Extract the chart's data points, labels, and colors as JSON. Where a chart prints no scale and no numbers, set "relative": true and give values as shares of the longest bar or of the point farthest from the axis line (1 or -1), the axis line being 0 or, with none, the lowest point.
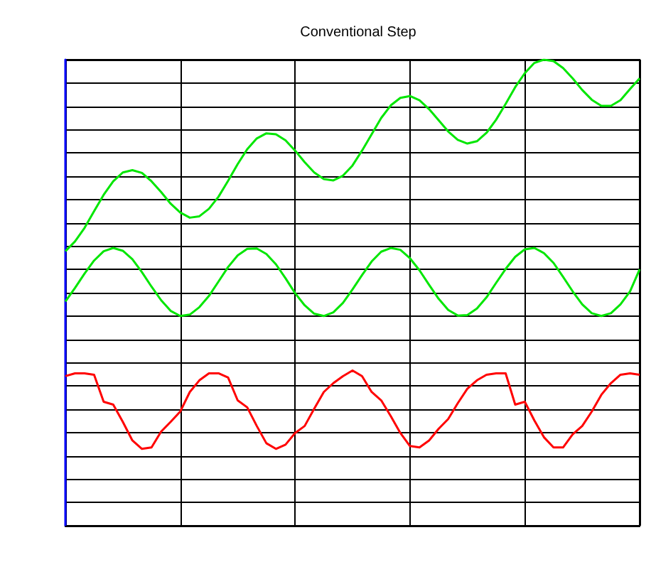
{
  "chart_data": {
    "type": "line",
    "title": "Conventional Step",
    "relative": true,
    "grid": true,
    "categories": [
      null,
      null,
      null,
      null,
      null,
      null,
      null,
      null,
      null,
      null,
      null,
      null,
      null,
      null,
      null,
      null,
      null,
      null,
      null,
      null,
      null,
      null,
      null,
      null,
      null,
      null,
      null,
      null,
      null,
      null,
      null,
      null,
      null,
      null,
      null,
      null,
      null,
      null,
      null,
      null,
      null,
      null,
      null,
      null,
      null,
      null,
      null,
      null,
      null,
      null,
      null,
      null,
      null,
      null,
      null,
      null,
      null,
      null,
      null,
      null,
      null
    ],
    "series": [
      {
        "color": "#00e600",
        "values": [
          0.589,
          0.61,
          0.639,
          0.675,
          0.71,
          0.739,
          0.758,
          0.763,
          0.757,
          0.739,
          0.716,
          0.691,
          0.672,
          0.661,
          0.664,
          0.68,
          0.706,
          0.74,
          0.776,
          0.808,
          0.831,
          0.842,
          0.84,
          0.827,
          0.805,
          0.78,
          0.758,
          0.744,
          0.741,
          0.751,
          0.773,
          0.805,
          0.84,
          0.875,
          0.902,
          0.918,
          0.922,
          0.913,
          0.894,
          0.87,
          0.846,
          0.828,
          0.82,
          0.825,
          0.843,
          0.871,
          0.905,
          0.941,
          0.971,
          0.993,
          1.0,
          0.997,
          0.982,
          0.96,
          0.935,
          0.914,
          0.901,
          0.901,
          0.913,
          0.937,
          0.96
        ]
      },
      {
        "color": "#00e600",
        "values": [
          0.481,
          0.51,
          0.541,
          0.569,
          0.589,
          0.596,
          0.59,
          0.572,
          0.544,
          0.513,
          0.484,
          0.461,
          0.45,
          0.453,
          0.469,
          0.493,
          0.524,
          0.555,
          0.58,
          0.594,
          0.595,
          0.583,
          0.561,
          0.531,
          0.499,
          0.473,
          0.455,
          0.45,
          0.458,
          0.478,
          0.507,
          0.538,
          0.567,
          0.588,
          0.596,
          0.592,
          0.574,
          0.548,
          0.517,
          0.487,
          0.463,
          0.451,
          0.452,
          0.466,
          0.49,
          0.521,
          0.551,
          0.577,
          0.593,
          0.596,
          0.585,
          0.564,
          0.534,
          0.503,
          0.475,
          0.456,
          0.45,
          0.456,
          0.475,
          0.503,
          0.55
        ]
      },
      {
        "color": "#ff0000",
        "values": [
          0.321,
          0.327,
          0.327,
          0.324,
          0.266,
          0.26,
          0.223,
          0.183,
          0.165,
          0.168,
          0.202,
          0.223,
          0.245,
          0.287,
          0.312,
          0.327,
          0.327,
          0.318,
          0.269,
          0.254,
          0.214,
          0.177,
          0.165,
          0.174,
          0.199,
          0.214,
          0.251,
          0.287,
          0.306,
          0.321,
          0.333,
          0.321,
          0.287,
          0.269,
          0.235,
          0.199,
          0.171,
          0.168,
          0.183,
          0.208,
          0.229,
          0.263,
          0.294,
          0.312,
          0.324,
          0.327,
          0.327,
          0.26,
          0.266,
          0.226,
          0.19,
          0.168,
          0.168,
          0.196,
          0.214,
          0.245,
          0.281,
          0.306,
          0.324,
          0.327,
          0.324
        ]
      }
    ]
  }
}
